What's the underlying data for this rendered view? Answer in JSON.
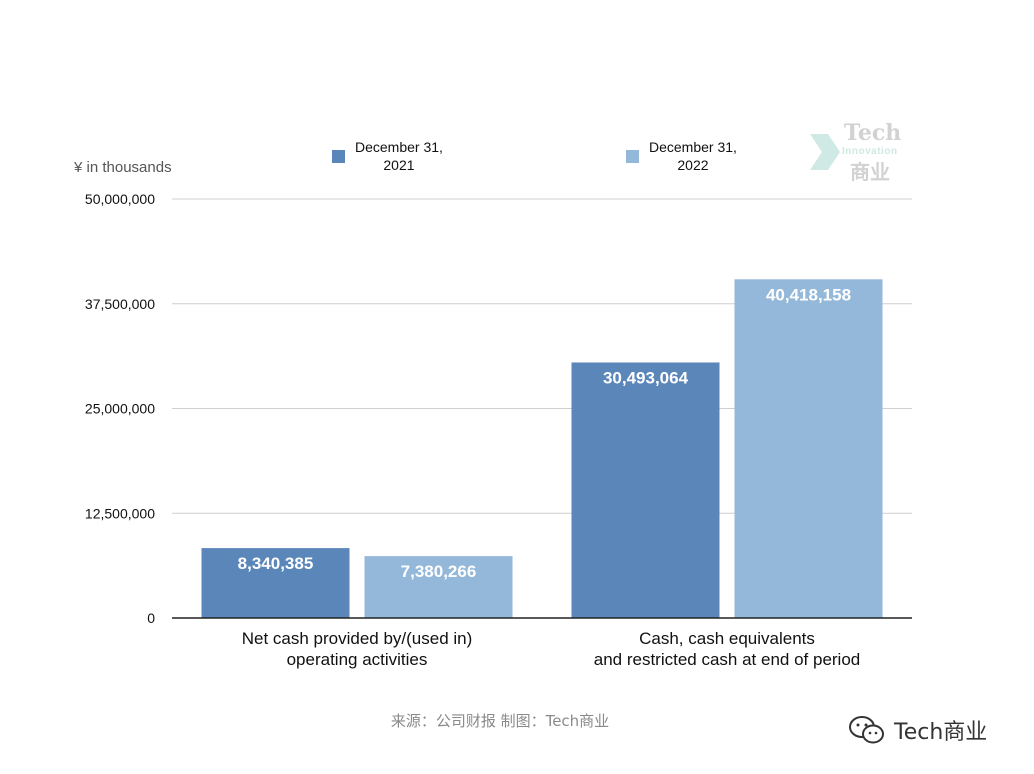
{
  "chart_data": {
    "type": "bar",
    "unit_label": "¥ in thousands",
    "categories": [
      "Net cash provided by/(used in)\noperating activities",
      "Cash, cash equivalents\nand restricted cash at end of period"
    ],
    "series": [
      {
        "name": "December 31,\n2021",
        "values": [
          8340385,
          30493064
        ],
        "labels": [
          "8,340,385",
          "30,493,064"
        ],
        "color": "#5b86b9"
      },
      {
        "name": "December 31,\n2022",
        "values": [
          7380266,
          40418158
        ],
        "labels": [
          "7,380,266",
          "40,418,158"
        ],
        "color": "#94b8da"
      }
    ],
    "yticks": [
      0,
      12500000,
      25000000,
      37500000,
      50000000
    ],
    "ytick_labels": [
      "0",
      "12,500,000",
      "25,000,000",
      "37,500,000",
      "50,000,000"
    ],
    "ylim": [
      0,
      50000000
    ],
    "grid": true,
    "legend_position": "top"
  },
  "watermark": {
    "line1": "Tech",
    "line2": "Innovation",
    "line3": "商业",
    "color": "#cfe9e4"
  },
  "source_text": "来源：公司财报 制图：Tech商业",
  "brand_text": "Tech商业"
}
